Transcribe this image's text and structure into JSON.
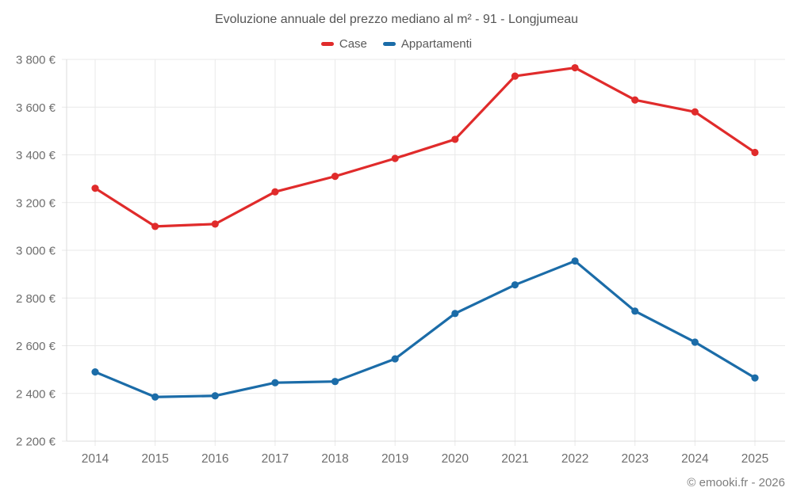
{
  "chart_data": {
    "type": "line",
    "title": "Evoluzione annuale del prezzo mediano al m² - 91 - Longjumeau",
    "categories": [
      "2014",
      "2015",
      "2016",
      "2017",
      "2018",
      "2019",
      "2020",
      "2021",
      "2022",
      "2023",
      "2024",
      "2025"
    ],
    "series": [
      {
        "name": "Case",
        "color": "#e02b2b",
        "values": [
          3260,
          3100,
          3110,
          3245,
          3310,
          3385,
          3465,
          3730,
          3765,
          3630,
          3580,
          3410
        ]
      },
      {
        "name": "Appartamenti",
        "color": "#1b6ca8",
        "values": [
          2490,
          2385,
          2390,
          2445,
          2450,
          2545,
          2735,
          2855,
          2955,
          2745,
          2615,
          2465
        ]
      }
    ],
    "ylabel": "",
    "xlabel": "",
    "ylim": [
      2200,
      3800
    ],
    "ytick_step": 200,
    "ytick_suffix": " €",
    "grid": true,
    "legend_position": "top",
    "colors": {
      "grid": "#e9e9e9",
      "axis": "#dcdcdc",
      "tick_text": "#6e6e6e"
    }
  },
  "footer": {
    "credit": "© emooki.fr - 2026"
  }
}
